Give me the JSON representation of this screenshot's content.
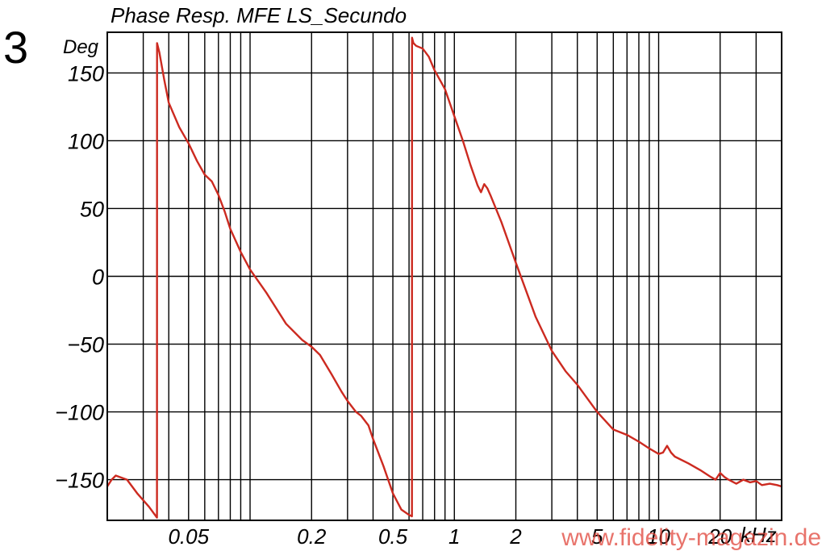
{
  "figure_number": "3",
  "watermark": "www.fidelity-magazin.de",
  "chart_data": {
    "type": "line",
    "title": "Phase Resp. MFE LS_Secundo",
    "ylabel": "Deg",
    "x_unit_label": "kHz",
    "x_scale": "log",
    "xlim": [
      0.02,
      40
    ],
    "ylim": [
      -180,
      180
    ],
    "y_ticks": [
      150,
      100,
      50,
      0,
      -50,
      -100,
      -150
    ],
    "y_tick_labels": [
      "150",
      "100",
      "50",
      "0",
      "−50",
      "−100",
      "−150"
    ],
    "x_tick_labels": [
      {
        "value": 0.05,
        "label": "0.05"
      },
      {
        "value": 0.2,
        "label": "0.2"
      },
      {
        "value": 0.5,
        "label": "0.5"
      },
      {
        "value": 1,
        "label": "1"
      },
      {
        "value": 2,
        "label": "2"
      },
      {
        "value": 5,
        "label": "5"
      },
      {
        "value": 10,
        "label": "10"
      },
      {
        "value": 20,
        "label": "20"
      }
    ],
    "grid": true,
    "line_color": "#cc2a20",
    "series": [
      {
        "x": [
          0.02,
          0.021,
          0.022,
          0.025,
          0.028,
          0.032,
          0.035,
          0.03505,
          0.036,
          0.038,
          0.04,
          0.045,
          0.05,
          0.055,
          0.06,
          0.065,
          0.07,
          0.075,
          0.08,
          0.09,
          0.1,
          0.12,
          0.15,
          0.18,
          0.2,
          0.22,
          0.25,
          0.28,
          0.3,
          0.33,
          0.35,
          0.38,
          0.4,
          0.45,
          0.5,
          0.55,
          0.6,
          0.62,
          0.6205,
          0.63,
          0.65,
          0.7,
          0.75,
          0.8,
          0.9,
          1.0,
          1.1,
          1.2,
          1.3,
          1.35,
          1.4,
          1.45,
          1.5,
          1.7,
          2.0,
          2.5,
          3.0,
          3.5,
          4.0,
          5.0,
          6.0,
          7.0,
          8.0,
          9.0,
          10.0,
          10.5,
          11.0,
          11.5,
          12.0,
          14.0,
          16.0,
          18.0,
          19.0,
          20.0,
          21.0,
          22.0,
          24.0,
          26.0,
          28.0,
          30.0,
          32.0,
          35.0,
          38.0,
          40.0
        ],
        "y": [
          -155,
          -150,
          -147,
          -150,
          -160,
          -170,
          -178,
          172,
          165,
          145,
          128,
          110,
          98,
          85,
          75,
          70,
          60,
          48,
          35,
          18,
          5,
          -12,
          -35,
          -47,
          -52,
          -58,
          -72,
          -85,
          -92,
          -100,
          -103,
          -110,
          -120,
          -140,
          -160,
          -172,
          -176,
          -177,
          176,
          172,
          170,
          168,
          162,
          152,
          138,
          118,
          100,
          82,
          67,
          62,
          68,
          65,
          60,
          40,
          10,
          -30,
          -55,
          -70,
          -80,
          -100,
          -113,
          -117,
          -122,
          -127,
          -131,
          -130,
          -125,
          -130,
          -133,
          -138,
          -143,
          -148,
          -150,
          -145,
          -148,
          -150,
          -153,
          -150,
          -152,
          -151,
          -154,
          -153,
          -154,
          -155
        ]
      }
    ]
  }
}
